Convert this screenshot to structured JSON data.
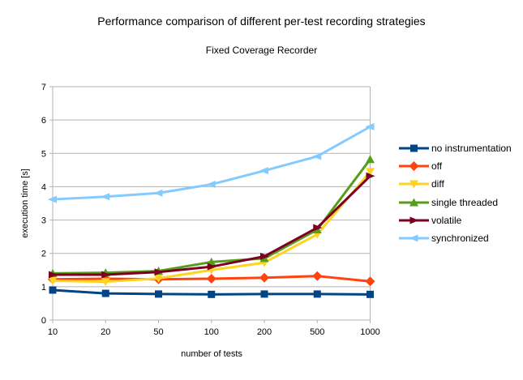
{
  "chart_data": {
    "type": "line",
    "title": "Performance comparison of different per-test recording strategies",
    "subtitle": "Fixed Coverage Recorder",
    "xlabel": "number of tests",
    "ylabel": "execution time [s]",
    "categories": [
      "10",
      "20",
      "50",
      "100",
      "200",
      "500",
      "1000"
    ],
    "y_ticks": [
      0,
      1,
      2,
      3,
      4,
      5,
      6,
      7
    ],
    "ylim": [
      0,
      7
    ],
    "grid": "horizontal",
    "legend_position": "right",
    "grid_color": "#b3b3b3",
    "axis_color": "#b3b3b3",
    "text_color": "#000000",
    "background_color": "#ffffff",
    "series": [
      {
        "name": "no instrumentation",
        "color": "#004586",
        "marker": "square",
        "values": [
          0.9,
          0.8,
          0.78,
          0.77,
          0.78,
          0.78,
          0.77
        ]
      },
      {
        "name": "off",
        "color": "#FF420E",
        "marker": "diamond",
        "values": [
          1.22,
          1.24,
          1.22,
          1.24,
          1.27,
          1.32,
          1.16
        ]
      },
      {
        "name": "diff",
        "color": "#FFD320",
        "marker": "triangle-down",
        "values": [
          1.18,
          1.15,
          1.25,
          1.5,
          1.72,
          2.57,
          4.45
        ]
      },
      {
        "name": "single threaded",
        "color": "#579D1C",
        "marker": "triangle-up",
        "values": [
          1.4,
          1.42,
          1.47,
          1.74,
          1.85,
          2.71,
          4.82
        ]
      },
      {
        "name": "volatile",
        "color": "#7E0021",
        "marker": "arrow-right",
        "values": [
          1.36,
          1.36,
          1.44,
          1.6,
          1.91,
          2.77,
          4.32
        ]
      },
      {
        "name": "synchronized",
        "color": "#83CAFF",
        "marker": "arrow-left",
        "values": [
          3.62,
          3.7,
          3.81,
          4.07,
          4.48,
          4.91,
          5.8
        ]
      }
    ]
  }
}
